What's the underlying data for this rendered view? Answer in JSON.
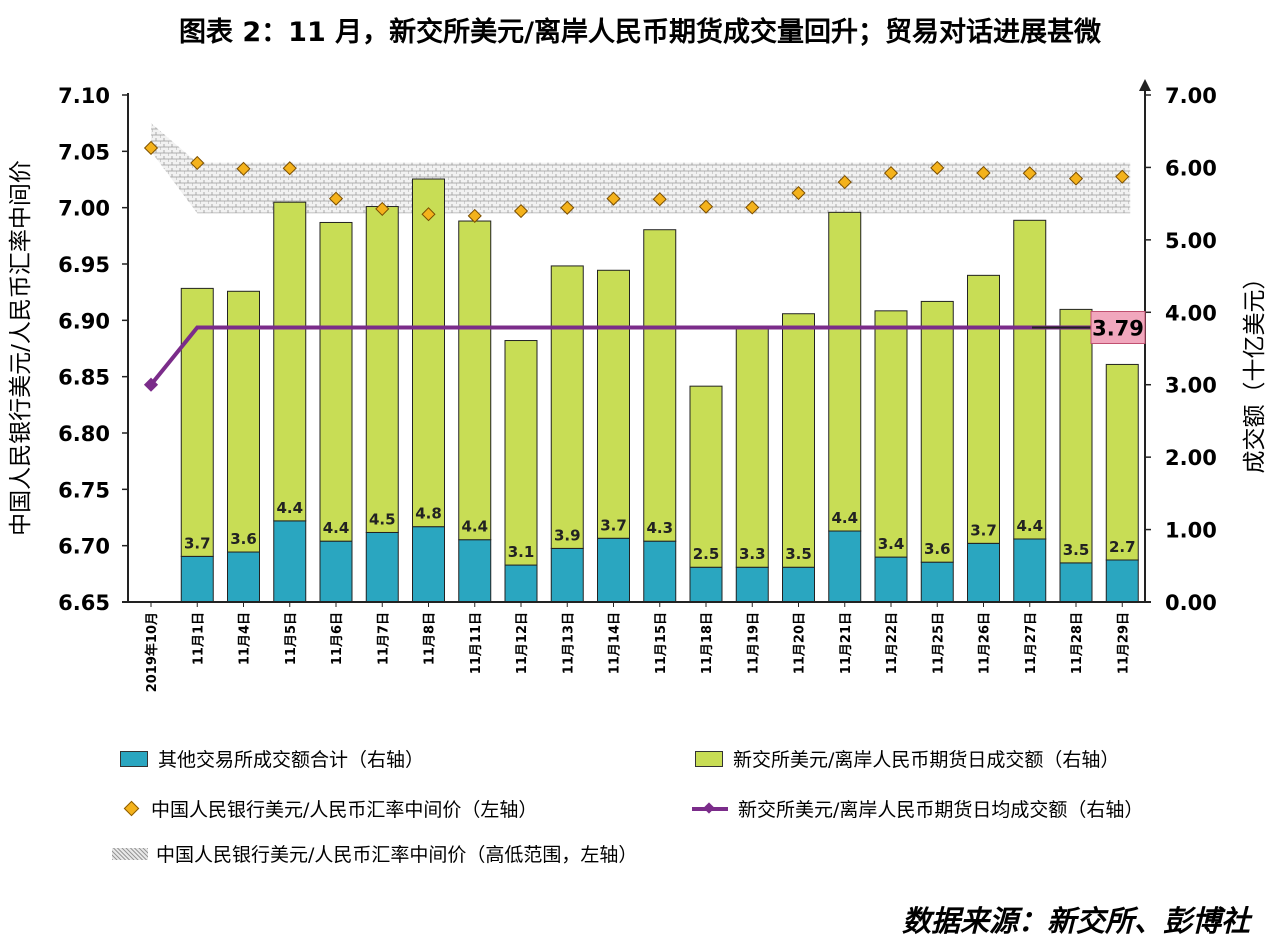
{
  "title": "图表 2：11 月，新交所美元/离岸人民币期货成交量回升；贸易对话进展甚微",
  "source": "数据来源：新交所、彭博社",
  "colors": {
    "other_exchanges": "#2aa6c0",
    "cfets_futures": "#c8dd55",
    "fixing_marker": "#f4b21b",
    "avg_line": "#7b2c8a",
    "avg_callout": "#f1a7bd"
  },
  "chart_data": {
    "type": "bar",
    "categories": [
      "2019年10月",
      "11月1日",
      "11月4日",
      "11月5日",
      "11月6日",
      "11月7日",
      "11月8日",
      "11月11日",
      "11月12日",
      "11月13日",
      "11月14日",
      "11月15日",
      "11月18日",
      "11月19日",
      "11月20日",
      "11月21日",
      "11月22日",
      "11月25日",
      "11月26日",
      "11月27日",
      "11月28日",
      "11月29日"
    ],
    "ylabel_left": "中国人民银行美元/人民币汇率中间价",
    "ylabel_right": "成交额（十亿美元）",
    "left_axis": {
      "min": 6.65,
      "max": 7.1,
      "step": 0.05,
      "ticks": [
        "6.65",
        "6.70",
        "6.75",
        "6.80",
        "6.85",
        "6.90",
        "6.95",
        "7.00",
        "7.05",
        "7.10"
      ]
    },
    "right_axis": {
      "min": 0,
      "max": 7,
      "step": 1,
      "ticks": [
        "0.00",
        "1.00",
        "2.00",
        "3.00",
        "4.00",
        "5.00",
        "6.00",
        "7.00"
      ]
    },
    "series": [
      {
        "name": "其他交易所成交额合计（右轴）",
        "axis": "right",
        "kind": "stacked-bar",
        "values": [
          null,
          0.63,
          0.69,
          1.12,
          0.84,
          0.96,
          1.04,
          0.86,
          0.51,
          0.74,
          0.88,
          0.84,
          0.48,
          0.48,
          0.48,
          0.98,
          0.62,
          0.55,
          0.81,
          0.87,
          0.54,
          0.58
        ]
      },
      {
        "name": "新交所美元/离岸人民币期货日成交额（右轴）",
        "axis": "right",
        "kind": "stacked-bar",
        "values": [
          null,
          3.7,
          3.6,
          4.4,
          4.4,
          4.5,
          4.8,
          4.4,
          3.1,
          3.9,
          3.7,
          4.3,
          2.5,
          3.3,
          3.5,
          4.4,
          3.4,
          3.6,
          3.7,
          4.4,
          3.5,
          2.7
        ],
        "labels": [
          null,
          "3.7",
          "3.6",
          "4.4",
          "4.4",
          "4.5",
          "4.8",
          "4.4",
          "3.1",
          "3.9",
          "3.7",
          "4.3",
          "2.5",
          "3.3",
          "3.5",
          "4.4",
          "3.4",
          "3.6",
          "3.7",
          "4.4",
          "3.5",
          "2.7"
        ]
      },
      {
        "name": "中国人民银行美元/人民币汇率中间价（左轴）",
        "axis": "left",
        "kind": "marker",
        "values": [
          7.053,
          7.0397,
          7.0345,
          7.035,
          7.008,
          6.9989,
          6.9942,
          6.9927,
          6.997,
          6.9999,
          7.008,
          7.0075,
          7.0009,
          7.0002,
          7.013,
          7.0227,
          7.0307,
          7.0353,
          7.0308,
          7.0305,
          7.0258,
          7.0275
        ]
      },
      {
        "name": "新交所美元/离岸人民币期货日均成交额（右轴）",
        "axis": "right",
        "kind": "line",
        "values": [
          3.0,
          3.79,
          3.79,
          3.79,
          3.79,
          3.79,
          3.79,
          3.79,
          3.79,
          3.79,
          3.79,
          3.79,
          3.79,
          3.79,
          3.79,
          3.79,
          3.79,
          3.79,
          3.79,
          3.79,
          3.79,
          3.79
        ],
        "callout": "3.79"
      },
      {
        "name": "中国人民银行美元/人民币汇率中间价（高低范围，左轴）",
        "axis": "left",
        "kind": "range",
        "high": [
          7.075,
          7.04,
          7.04,
          7.04,
          7.04,
          7.04,
          7.04,
          7.04,
          7.04,
          7.04,
          7.04,
          7.04,
          7.04,
          7.04,
          7.04,
          7.04,
          7.04,
          7.04,
          7.04,
          7.04,
          7.04,
          7.04
        ],
        "low": [
          7.05,
          6.995,
          6.995,
          6.995,
          6.995,
          6.995,
          6.995,
          6.995,
          6.995,
          6.995,
          6.995,
          6.995,
          6.995,
          6.995,
          6.995,
          6.995,
          6.995,
          6.995,
          6.995,
          6.995,
          6.995,
          6.995
        ]
      }
    ]
  }
}
